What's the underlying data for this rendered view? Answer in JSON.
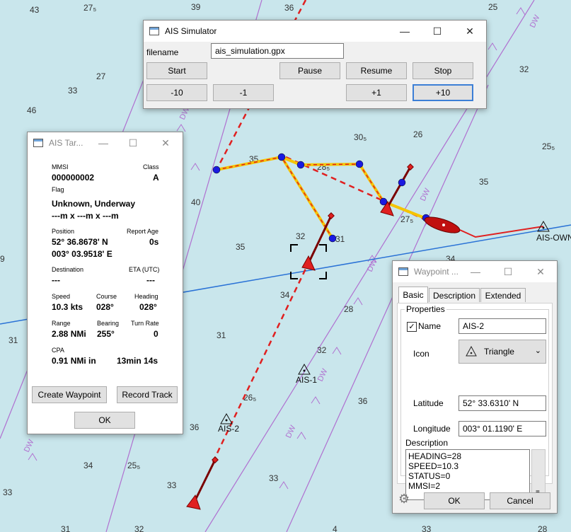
{
  "chart": {
    "soundings": [
      "43",
      "27₅",
      "39",
      "36",
      "25",
      "32",
      "27",
      "33",
      "46",
      "30₅",
      "26",
      "25₅",
      "35",
      "28₅",
      "35",
      "40",
      "32",
      "31",
      "35",
      "34",
      "27₅",
      "34",
      "28",
      "32",
      "31",
      "36",
      "26₅",
      "36",
      "34",
      "25₅",
      "33",
      "33",
      "33",
      "31",
      "9",
      "31",
      "33",
      "28",
      "4",
      "32"
    ],
    "labels": {
      "ais_own": "AIS-OWN",
      "ais_1": "AIS-1",
      "ais_2": "AIS-2"
    },
    "channel_text": "DW"
  },
  "ais_simulator": {
    "title": "AIS Simulator",
    "filename_label": "filename",
    "filename_value": "ais_simulation.gpx",
    "buttons": {
      "start": "Start",
      "pause": "Pause",
      "resume": "Resume",
      "stop": "Stop",
      "minus10": "-10",
      "minus1": "-1",
      "plus1": "+1",
      "plus10": "+10"
    }
  },
  "ais_target": {
    "title": "AIS Tar...",
    "mmsi_label": "MMSI",
    "mmsi": "000000002",
    "class_label": "Class",
    "class": "A",
    "flag_label": "Flag",
    "status": "Unknown, Underway",
    "dimensions": "---m x ---m x ---m",
    "position_label": "Position",
    "lat": "52° 36.8678' N",
    "lon": "003° 03.9518' E",
    "report_age_label": "Report Age",
    "report_age": "0s",
    "destination_label": "Destination",
    "destination": "---",
    "eta_label": "ETA (UTC)",
    "eta": "---",
    "speed_label": "Speed",
    "speed": "10.3 kts",
    "course_label": "Course",
    "course": "028°",
    "heading_label": "Heading",
    "heading": "028°",
    "range_label": "Range",
    "range": "2.88 NMi",
    "bearing_label": "Bearing",
    "bearing": "255°",
    "turn_rate_label": "Turn Rate",
    "turn_rate": "0",
    "cpa_label": "CPA",
    "cpa": "0.91 NMi in",
    "tcpa": "13min 14s",
    "create_waypoint": "Create Waypoint",
    "record_track": "Record Track",
    "ok": "OK"
  },
  "waypoint": {
    "title": "Waypoint ...",
    "tabs": [
      "Basic",
      "Description",
      "Extended"
    ],
    "properties_label": "Properties",
    "name_label": "Name",
    "name_checked": true,
    "name_value": "AIS-2",
    "icon_label": "Icon",
    "icon_value": "Triangle",
    "latitude_label": "Latitude",
    "latitude_value": "52° 33.6310' N",
    "longitude_label": "Longitude",
    "longitude_value": "003° 01.1190' E",
    "description_label": "Description",
    "description_lines": [
      "HEADING=28",
      "SPEED=10.3",
      "STATUS=0",
      "MMSI=2"
    ],
    "ok": "OK",
    "cancel": "Cancel"
  },
  "colors": {
    "sea": "#c9e6ec",
    "route_red": "#e02020",
    "route_yellow": "#f5c400",
    "waypoint_blue": "#1a1ae0",
    "line_blue": "#2a72d6",
    "channel_purple": "#b070d0"
  }
}
